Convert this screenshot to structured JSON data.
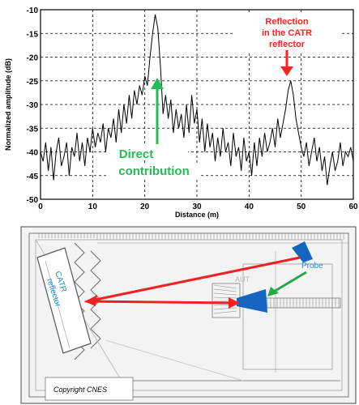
{
  "chart_data": {
    "type": "line",
    "xlabel": "Distance (m)",
    "ylabel": "Normalized amplitude (dB)",
    "xlim": [
      0,
      60
    ],
    "ylim": [
      -50,
      -10
    ],
    "xticks": [
      0,
      10,
      20,
      30,
      40,
      50,
      60
    ],
    "yticks": [
      -10,
      -15,
      -20,
      -25,
      -30,
      -35,
      -40,
      -45,
      -50
    ],
    "grid": true,
    "series": [
      {
        "color": "#000000",
        "x": [
          0,
          0.5,
          1,
          1.5,
          2,
          2.5,
          3,
          3.5,
          4,
          4.5,
          5,
          5.5,
          6,
          6.5,
          7,
          7.5,
          8,
          8.5,
          9,
          9.5,
          10,
          10.5,
          11,
          11.5,
          12,
          12.5,
          13,
          13.5,
          14,
          14.5,
          15,
          15.5,
          16,
          16.5,
          17,
          17.5,
          18,
          18.5,
          19,
          19.5,
          20,
          20.5,
          21,
          21.5,
          22,
          22.5,
          23,
          23.5,
          24,
          24.5,
          25,
          25.5,
          26,
          26.5,
          27,
          27.5,
          28,
          28.5,
          29,
          29.5,
          30,
          30.5,
          31,
          31.5,
          32,
          32.5,
          33,
          33.5,
          34,
          34.5,
          35,
          35.5,
          36,
          36.5,
          37,
          37.5,
          38,
          38.5,
          39,
          39.5,
          40,
          40.5,
          41,
          41.5,
          42,
          42.5,
          43,
          43.5,
          44,
          44.5,
          45,
          45.5,
          46,
          46.5,
          47,
          47.5,
          48,
          48.5,
          49,
          49.5,
          50,
          50.5,
          51,
          51.5,
          52,
          52.5,
          53,
          53.5,
          54,
          54.5,
          55,
          55.5,
          56,
          56.5,
          57,
          57.5,
          58,
          58.5,
          59,
          59.5,
          60
        ],
        "y": [
          -40,
          -42,
          -38,
          -44,
          -39,
          -46,
          -40,
          -37,
          -43,
          -41,
          -38,
          -45,
          -39,
          -41,
          -36,
          -42,
          -38,
          -43,
          -37,
          -40,
          -35,
          -39,
          -36,
          -38,
          -34,
          -40,
          -35,
          -37,
          -33,
          -38,
          -31,
          -36,
          -30,
          -34,
          -28,
          -33,
          -27,
          -30,
          -26,
          -28,
          -24,
          -26,
          -20,
          -15,
          -11,
          -14,
          -22,
          -32,
          -28,
          -33,
          -29,
          -36,
          -31,
          -35,
          -32,
          -37,
          -30,
          -36,
          -28,
          -34,
          -31,
          -38,
          -33,
          -40,
          -34,
          -39,
          -36,
          -42,
          -37,
          -41,
          -35,
          -40,
          -38,
          -43,
          -36,
          -41,
          -39,
          -44,
          -37,
          -42,
          -40,
          -45,
          -38,
          -43,
          -37,
          -41,
          -36,
          -40,
          -38,
          -35,
          -39,
          -33,
          -37,
          -34,
          -31,
          -27,
          -25,
          -28,
          -33,
          -36,
          -39,
          -41,
          -38,
          -43,
          -40,
          -37,
          -42,
          -39,
          -44,
          -41,
          -47,
          -43,
          -40,
          -44,
          -42,
          -38,
          -43,
          -40,
          -41,
          -39,
          -42
        ]
      }
    ],
    "annotations": [
      {
        "lines": [
          "Reflection",
          "in the CATR",
          "reflector"
        ],
        "color": "#ff2020",
        "arrow_to": [
          47,
          -24
        ]
      },
      {
        "lines": [
          "Direct",
          "contribution"
        ],
        "color": "#22bb55",
        "arrow_to": [
          22,
          -23
        ]
      }
    ]
  },
  "diagram": {
    "labels": {
      "catr": "CATR",
      "reflector": "reflector",
      "aut": "AUT",
      "probe": "Probe",
      "copyright": "Copyright  CNES"
    },
    "colors": {
      "path": "#ee2222",
      "probe_arrow": "#22aa44",
      "equipment": "#1565c0",
      "text_blue": "#1a8fd6"
    }
  }
}
